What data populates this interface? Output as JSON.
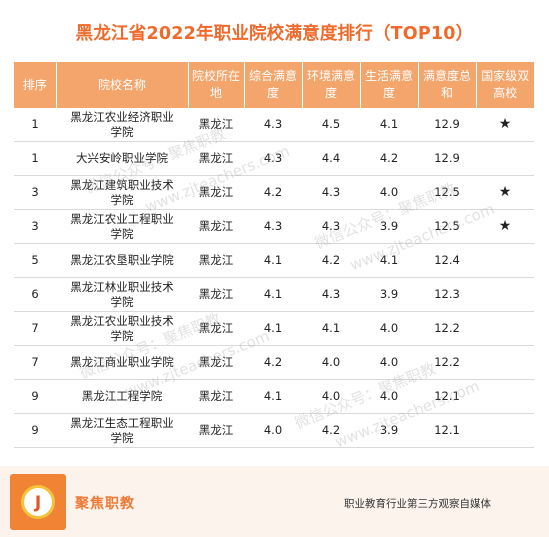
{
  "title": "黑龙江省2022年职业院校满意度排行（TOP10）",
  "columns": [
    "排序",
    "院校名称",
    "院校所在地",
    "综合满意度",
    "环境满意度",
    "生活满意度",
    "满意度总和",
    "国家级双高校"
  ],
  "rows": [
    {
      "rank": "1",
      "name": "黑龙江农业经济职业学院",
      "location": "黑龙江",
      "overall": "4.3",
      "env": "4.5",
      "life": "4.1",
      "total": "12.9",
      "double_high": "★"
    },
    {
      "rank": "1",
      "name": "大兴安岭职业学院",
      "location": "黑龙江",
      "overall": "4.3",
      "env": "4.4",
      "life": "4.2",
      "total": "12.9",
      "double_high": ""
    },
    {
      "rank": "3",
      "name": "黑龙江建筑职业技术学院",
      "location": "黑龙江",
      "overall": "4.2",
      "env": "4.3",
      "life": "4.0",
      "total": "12.5",
      "double_high": "★"
    },
    {
      "rank": "3",
      "name": "黑龙江农业工程职业学院",
      "location": "黑龙江",
      "overall": "4.3",
      "env": "4.3",
      "life": "3.9",
      "total": "12.5",
      "double_high": "★"
    },
    {
      "rank": "5",
      "name": "黑龙江农垦职业学院",
      "location": "黑龙江",
      "overall": "4.1",
      "env": "4.2",
      "life": "4.1",
      "total": "12.4",
      "double_high": ""
    },
    {
      "rank": "6",
      "name": "黑龙江林业职业技术学院",
      "location": "黑龙江",
      "overall": "4.1",
      "env": "4.3",
      "life": "3.9",
      "total": "12.3",
      "double_high": ""
    },
    {
      "rank": "7",
      "name": "黑龙江农业职业技术学院",
      "location": "黑龙江",
      "overall": "4.1",
      "env": "4.1",
      "life": "4.0",
      "total": "12.2",
      "double_high": ""
    },
    {
      "rank": "7",
      "name": "黑龙江商业职业学院",
      "location": "黑龙江",
      "overall": "4.2",
      "env": "4.0",
      "life": "4.0",
      "total": "12.2",
      "double_high": ""
    },
    {
      "rank": "9",
      "name": "黑龙江工程学院",
      "location": "黑龙江",
      "overall": "4.1",
      "env": "4.0",
      "life": "4.0",
      "total": "12.1",
      "double_high": ""
    },
    {
      "rank": "9",
      "name": "黑龙江生态工程职业学院",
      "location": "黑龙江",
      "overall": "4.0",
      "env": "4.2",
      "life": "3.9",
      "total": "12.1",
      "double_high": ""
    }
  ],
  "footer": {
    "logo_letter": "J",
    "brand": "聚焦职教",
    "slogan": "职业教育行业第三方观察自媒体"
  },
  "watermarks": [
    "微信公众号：聚焦职教",
    "www.zjteachers.com"
  ],
  "colors": {
    "accent": "#ef6a2b",
    "header_bg": "#f4a56c",
    "footer_bg": "#fbf3ec"
  }
}
